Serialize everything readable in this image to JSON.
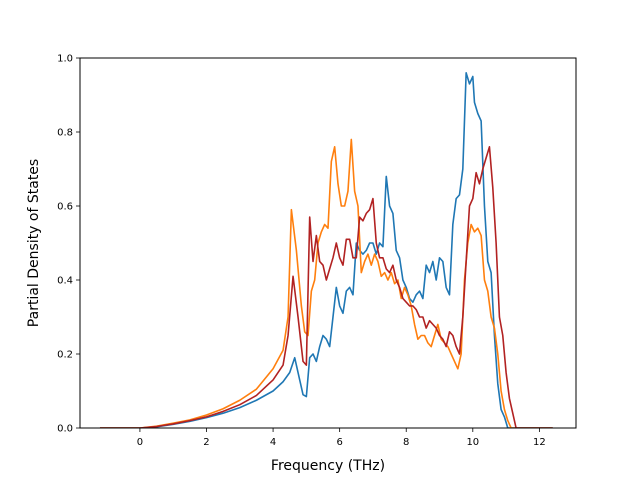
{
  "chart_data": {
    "type": "line",
    "title": "",
    "xlabel": "Frequency (THz)",
    "ylabel": "Partial Density of States",
    "xlim": [
      -1.8,
      13.1
    ],
    "ylim": [
      0.0,
      1.0
    ],
    "xticks": [
      0,
      2,
      4,
      6,
      8,
      10,
      12
    ],
    "yticks": [
      0.0,
      0.2,
      0.4,
      0.6,
      0.8,
      1.0
    ],
    "xtick_labels": [
      "0",
      "2",
      "4",
      "6",
      "8",
      "10",
      "12"
    ],
    "ytick_labels": [
      "0.0",
      "0.2",
      "0.4",
      "0.6",
      "0.8",
      "1.0"
    ],
    "grid": false,
    "legend": "none",
    "series": [
      {
        "color": "#1f77b4",
        "x": [
          -1.2,
          -0.5,
          0,
          0.5,
          1,
          1.5,
          2,
          2.5,
          3,
          3.5,
          4,
          4.3,
          4.5,
          4.65,
          4.8,
          4.9,
          5.0,
          5.1,
          5.2,
          5.3,
          5.4,
          5.5,
          5.6,
          5.7,
          5.8,
          5.9,
          6.0,
          6.1,
          6.2,
          6.3,
          6.4,
          6.5,
          6.6,
          6.7,
          6.8,
          6.9,
          7.0,
          7.1,
          7.2,
          7.3,
          7.4,
          7.5,
          7.6,
          7.7,
          7.8,
          7.9,
          8.0,
          8.1,
          8.2,
          8.3,
          8.4,
          8.5,
          8.6,
          8.7,
          8.8,
          8.9,
          9.0,
          9.1,
          9.2,
          9.3,
          9.4,
          9.5,
          9.6,
          9.7,
          9.8,
          9.9,
          10.0,
          10.05,
          10.15,
          10.25,
          10.35,
          10.45,
          10.55,
          10.65,
          10.75,
          10.85,
          10.95,
          11.05,
          11.15,
          11.3,
          11.5,
          12.4
        ],
        "y": [
          0.0,
          0.0,
          0.0,
          0.003,
          0.01,
          0.018,
          0.028,
          0.04,
          0.055,
          0.075,
          0.1,
          0.125,
          0.15,
          0.19,
          0.13,
          0.09,
          0.085,
          0.19,
          0.2,
          0.18,
          0.22,
          0.25,
          0.24,
          0.22,
          0.3,
          0.38,
          0.33,
          0.31,
          0.37,
          0.38,
          0.36,
          0.5,
          0.48,
          0.47,
          0.48,
          0.5,
          0.5,
          0.47,
          0.5,
          0.49,
          0.68,
          0.6,
          0.58,
          0.48,
          0.46,
          0.4,
          0.38,
          0.35,
          0.34,
          0.36,
          0.37,
          0.35,
          0.44,
          0.42,
          0.45,
          0.4,
          0.46,
          0.45,
          0.38,
          0.36,
          0.55,
          0.62,
          0.63,
          0.7,
          0.96,
          0.93,
          0.95,
          0.88,
          0.85,
          0.83,
          0.6,
          0.45,
          0.42,
          0.25,
          0.12,
          0.05,
          0.03,
          0.0,
          0.0,
          0.0,
          0.0,
          0.0
        ]
      },
      {
        "color": "#ff7f0e",
        "x": [
          -1.2,
          -0.5,
          0,
          0.5,
          1,
          1.5,
          2,
          2.5,
          3,
          3.5,
          4,
          4.3,
          4.45,
          4.55,
          4.7,
          4.85,
          4.95,
          5.05,
          5.15,
          5.25,
          5.35,
          5.45,
          5.55,
          5.65,
          5.75,
          5.85,
          5.95,
          6.05,
          6.15,
          6.25,
          6.35,
          6.45,
          6.55,
          6.65,
          6.75,
          6.85,
          6.95,
          7.05,
          7.15,
          7.25,
          7.35,
          7.45,
          7.55,
          7.65,
          7.75,
          7.85,
          7.95,
          8.05,
          8.15,
          8.25,
          8.35,
          8.45,
          8.55,
          8.65,
          8.75,
          8.85,
          8.95,
          9.05,
          9.15,
          9.25,
          9.35,
          9.45,
          9.55,
          9.65,
          9.75,
          9.85,
          9.95,
          10.05,
          10.15,
          10.25,
          10.35,
          10.45,
          10.55,
          10.65,
          10.75,
          10.85,
          10.95,
          11.05,
          11.15,
          11.3,
          11.5,
          12.4
        ],
        "y": [
          0.0,
          0.0,
          0.0,
          0.005,
          0.013,
          0.022,
          0.035,
          0.052,
          0.075,
          0.105,
          0.16,
          0.21,
          0.3,
          0.59,
          0.48,
          0.33,
          0.26,
          0.25,
          0.37,
          0.4,
          0.5,
          0.53,
          0.55,
          0.54,
          0.72,
          0.76,
          0.66,
          0.6,
          0.6,
          0.64,
          0.78,
          0.64,
          0.6,
          0.42,
          0.45,
          0.47,
          0.44,
          0.47,
          0.45,
          0.41,
          0.42,
          0.4,
          0.42,
          0.39,
          0.4,
          0.35,
          0.38,
          0.36,
          0.33,
          0.28,
          0.24,
          0.25,
          0.25,
          0.23,
          0.22,
          0.25,
          0.28,
          0.24,
          0.23,
          0.22,
          0.2,
          0.18,
          0.16,
          0.2,
          0.4,
          0.5,
          0.55,
          0.53,
          0.54,
          0.52,
          0.4,
          0.37,
          0.3,
          0.27,
          0.2,
          0.1,
          0.05,
          0.02,
          0.0,
          0.0,
          0.0,
          0.0
        ]
      },
      {
        "color": "#b22222",
        "x": [
          -1.2,
          -0.5,
          0,
          0.5,
          1,
          1.5,
          2,
          2.5,
          3,
          3.5,
          4,
          4.3,
          4.45,
          4.6,
          4.75,
          4.9,
          5.0,
          5.1,
          5.2,
          5.3,
          5.4,
          5.5,
          5.6,
          5.7,
          5.8,
          5.9,
          6.0,
          6.1,
          6.2,
          6.3,
          6.4,
          6.5,
          6.6,
          6.7,
          6.8,
          6.9,
          7.0,
          7.1,
          7.2,
          7.3,
          7.4,
          7.5,
          7.6,
          7.7,
          7.8,
          7.9,
          8.0,
          8.1,
          8.2,
          8.3,
          8.4,
          8.5,
          8.6,
          8.7,
          8.8,
          8.9,
          9.0,
          9.1,
          9.2,
          9.3,
          9.4,
          9.5,
          9.6,
          9.7,
          9.8,
          9.9,
          10.0,
          10.1,
          10.2,
          10.3,
          10.4,
          10.5,
          10.6,
          10.7,
          10.8,
          10.9,
          11.0,
          11.1,
          11.2,
          11.3,
          11.5,
          12.4
        ],
        "y": [
          0.0,
          0.0,
          0.0,
          0.004,
          0.011,
          0.02,
          0.03,
          0.045,
          0.063,
          0.088,
          0.13,
          0.17,
          0.25,
          0.41,
          0.3,
          0.18,
          0.17,
          0.57,
          0.45,
          0.52,
          0.45,
          0.44,
          0.4,
          0.43,
          0.46,
          0.5,
          0.46,
          0.44,
          0.51,
          0.51,
          0.46,
          0.46,
          0.57,
          0.56,
          0.58,
          0.59,
          0.62,
          0.5,
          0.46,
          0.46,
          0.43,
          0.42,
          0.44,
          0.4,
          0.38,
          0.35,
          0.34,
          0.33,
          0.33,
          0.32,
          0.3,
          0.3,
          0.27,
          0.29,
          0.28,
          0.27,
          0.25,
          0.24,
          0.22,
          0.26,
          0.25,
          0.22,
          0.2,
          0.3,
          0.45,
          0.6,
          0.62,
          0.69,
          0.66,
          0.7,
          0.73,
          0.76,
          0.65,
          0.5,
          0.3,
          0.25,
          0.15,
          0.08,
          0.04,
          0.0,
          0.0,
          0.0
        ]
      }
    ]
  }
}
